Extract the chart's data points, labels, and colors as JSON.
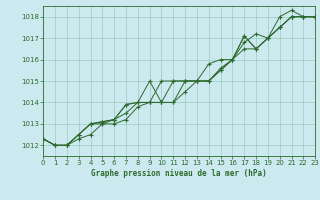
{
  "title": "Graphe pression niveau de la mer (hPa)",
  "background_color": "#cce9f0",
  "grid_color": "#99ccbb",
  "line_color": "#2d6a2d",
  "xlim": [
    0,
    23
  ],
  "ylim": [
    1011.5,
    1018.5
  ],
  "yticks": [
    1012,
    1013,
    1014,
    1015,
    1016,
    1017,
    1018
  ],
  "xticks": [
    0,
    1,
    2,
    3,
    4,
    5,
    6,
    7,
    8,
    9,
    10,
    11,
    12,
    13,
    14,
    15,
    16,
    17,
    18,
    19,
    20,
    21,
    22,
    23
  ],
  "series": [
    [
      1012.3,
      1012.0,
      1012.0,
      1012.5,
      1013.0,
      1013.1,
      1013.2,
      1013.9,
      1014.0,
      1015.0,
      1014.0,
      1015.0,
      1015.0,
      1015.0,
      1015.8,
      1016.0,
      1016.0,
      1017.1,
      1016.5,
      1017.0,
      1018.0,
      1018.3,
      1018.0,
      1018.0
    ],
    [
      1012.3,
      1012.0,
      1012.0,
      1012.5,
      1013.0,
      1013.1,
      1013.2,
      1013.9,
      1014.0,
      1014.0,
      1014.0,
      1014.0,
      1015.0,
      1015.0,
      1015.0,
      1015.5,
      1016.0,
      1016.5,
      1016.5,
      1017.0,
      1017.5,
      1018.0,
      1018.0,
      1018.0
    ],
    [
      1012.3,
      1012.0,
      1012.0,
      1012.5,
      1013.0,
      1013.0,
      1013.2,
      1013.5,
      1014.0,
      1014.0,
      1015.0,
      1015.0,
      1015.0,
      1015.0,
      1015.0,
      1015.6,
      1016.0,
      1016.8,
      1017.2,
      1017.0,
      1017.5,
      1018.0,
      1018.0,
      1018.0
    ],
    [
      1012.3,
      1012.0,
      1012.0,
      1012.3,
      1012.5,
      1013.0,
      1013.0,
      1013.2,
      1013.8,
      1014.0,
      1014.0,
      1014.0,
      1014.5,
      1015.0,
      1015.0,
      1015.5,
      1016.0,
      1017.1,
      1016.5,
      1017.0,
      1017.5,
      1018.0,
      1018.0,
      1018.0
    ]
  ]
}
